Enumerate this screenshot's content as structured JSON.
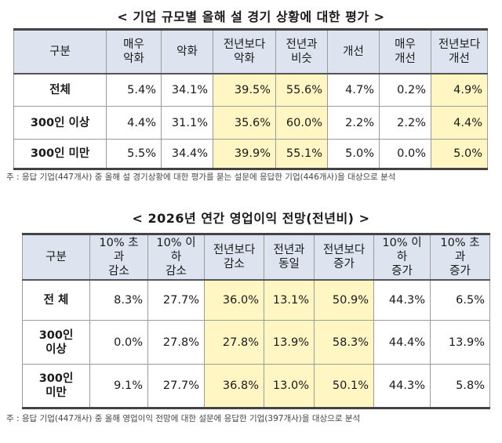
{
  "table1": {
    "title": "< 기업 규모별 올해 설 경기 상황에 대한 평가 >",
    "headers": [
      "구분",
      "매우\n악화",
      "악화",
      "전년보다\n악화",
      "전년과\n비슷",
      "개선",
      "매우\n개선",
      "전년보다\n개선"
    ],
    "rows": [
      {
        "label": "전체",
        "values": [
          "5.4%",
          "34.1%",
          "39.5%",
          "55.6%",
          "4.7%",
          "0.2%",
          "4.9%"
        ]
      },
      {
        "label": "300인 이상",
        "values": [
          "4.4%",
          "31.1%",
          "35.6%",
          "60.0%",
          "2.2%",
          "2.2%",
          "4.4%"
        ]
      },
      {
        "label": "300인 미만",
        "values": [
          "5.5%",
          "34.4%",
          "39.9%",
          "55.1%",
          "5.0%",
          "0.0%",
          "5.0%"
        ]
      }
    ],
    "note": "주 : 응답 기업(447개사) 중 올해 설 경기상황에 대한 평가를 묻는 설문에 응답한 기업(446개사)을 대상으로 분석"
  },
  "table2": {
    "title": "< 2026년 연간 영업이익 전망(전년비) >",
    "headers": [
      "구분",
      "10% 초과\n감소",
      "10% 이하\n감소",
      "전년보다\n감소",
      "전년과\n동일",
      "전년보다\n증가",
      "10% 이하\n증가",
      "10% 초과\n증가"
    ],
    "rows": [
      {
        "label": "전 체",
        "values": [
          "8.3%",
          "27.7%",
          "36.0%",
          "13.1%",
          "50.9%",
          "44.3%",
          "6.5%"
        ]
      },
      {
        "label": "300인\n이상",
        "values": [
          "0.0%",
          "27.8%",
          "27.8%",
          "13.9%",
          "58.3%",
          "44.4%",
          "13.9%"
        ]
      },
      {
        "label": "300인\n미만",
        "values": [
          "9.1%",
          "27.7%",
          "36.8%",
          "13.0%",
          "50.1%",
          "44.3%",
          "5.8%"
        ]
      }
    ],
    "note": "주 : 응답 기업(447개사) 중 올해 영업이익 전망에 대한 설문에 응답한 기업(397개사)을 대상으로 분석"
  },
  "colors": {
    "header_bg": "#dde4ef",
    "highlight_bg": "#fff6c4"
  }
}
